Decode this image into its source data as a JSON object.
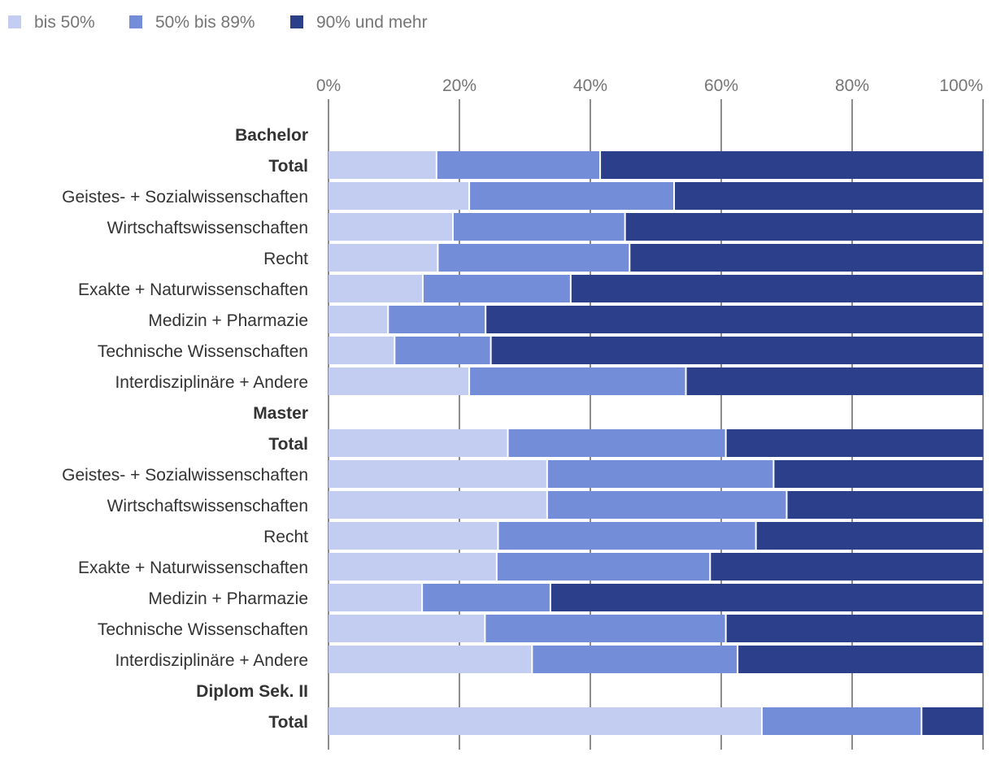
{
  "chart_data": {
    "type": "bar",
    "orientation": "horizontal",
    "stacked": true,
    "title": "",
    "xlabel": "",
    "ylabel": "",
    "xlim": [
      0,
      100
    ],
    "x_ticks": [
      "0%",
      "20%",
      "40%",
      "60%",
      "80%",
      "100%"
    ],
    "grid": true,
    "legend_position": "top-left",
    "series": [
      {
        "name": "bis 50%",
        "color": "#c3cdf1"
      },
      {
        "name": "50% bis 89%",
        "color": "#748dd9"
      },
      {
        "name": "90% und mehr",
        "color": "#2b3f8b"
      }
    ],
    "rows": [
      {
        "label": "Bachelor",
        "header": true
      },
      {
        "label": "Total",
        "bold": true,
        "values": [
          16.5,
          25.0,
          58.5
        ]
      },
      {
        "label": "Geistes- + Sozialwissenschaften",
        "values": [
          21.5,
          31.3,
          47.2
        ]
      },
      {
        "label": "Wirtschaftswissenschaften",
        "values": [
          19.0,
          26.3,
          54.7
        ]
      },
      {
        "label": "Recht",
        "values": [
          16.7,
          29.3,
          54.0
        ]
      },
      {
        "label": "Exakte + Naturwissenschaften",
        "values": [
          14.4,
          22.6,
          63.0
        ]
      },
      {
        "label": "Medizin + Pharmazie",
        "values": [
          9.1,
          14.9,
          76.0
        ]
      },
      {
        "label": "Technische Wissenschaften",
        "values": [
          10.1,
          14.7,
          75.2
        ]
      },
      {
        "label": "Interdisziplinäre + Andere",
        "values": [
          21.5,
          33.1,
          45.4
        ]
      },
      {
        "label": "Master",
        "header": true
      },
      {
        "label": "Total",
        "bold": true,
        "values": [
          27.4,
          33.3,
          39.3
        ]
      },
      {
        "label": "Geistes- + Sozialwissenschaften",
        "values": [
          33.4,
          34.6,
          32.0
        ]
      },
      {
        "label": "Wirtschaftswissenschaften",
        "values": [
          33.4,
          36.6,
          30.0
        ]
      },
      {
        "label": "Recht",
        "values": [
          25.9,
          39.4,
          34.7
        ]
      },
      {
        "label": "Exakte + Naturwissenschaften",
        "values": [
          25.7,
          32.6,
          41.7
        ]
      },
      {
        "label": "Medizin + Pharmazie",
        "values": [
          14.3,
          19.6,
          66.1
        ]
      },
      {
        "label": "Technische Wissenschaften",
        "values": [
          23.9,
          36.8,
          39.3
        ]
      },
      {
        "label": "Interdisziplinäre + Andere",
        "values": [
          31.1,
          31.4,
          37.5
        ]
      },
      {
        "label": "Diplom Sek. II",
        "header": true
      },
      {
        "label": "Total",
        "bold": true,
        "values": [
          66.2,
          24.4,
          9.4
        ]
      }
    ]
  }
}
